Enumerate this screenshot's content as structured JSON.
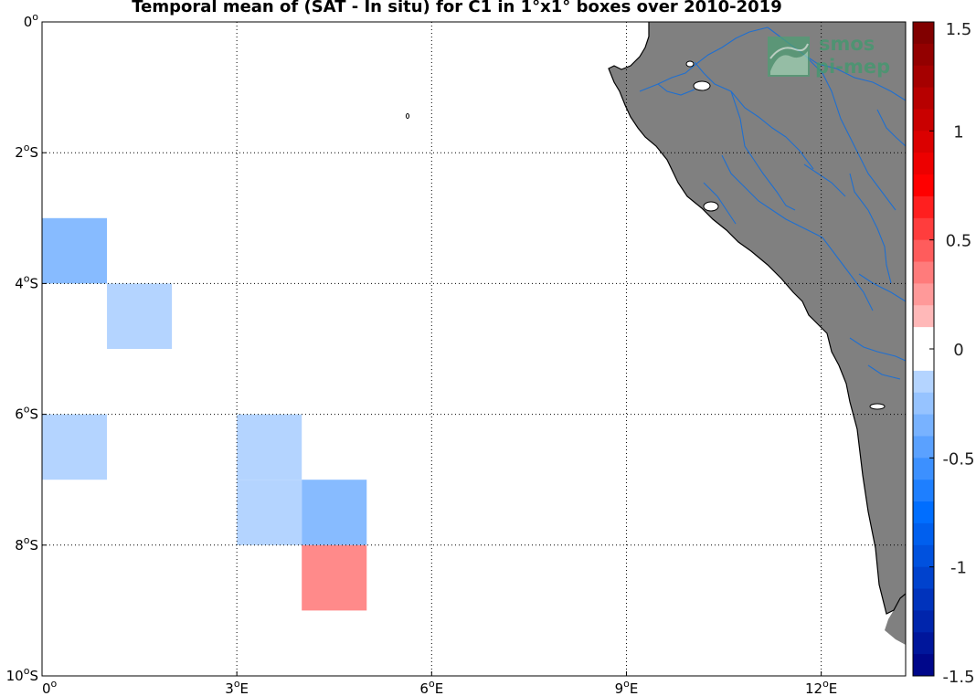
{
  "title": "Temporal mean of (SAT - In situ) for C1 in 1°x1° boxes over 2010-2019",
  "watermark": {
    "line1": "smos",
    "line2": "pi-mep"
  },
  "map": {
    "lon_range": [
      0,
      13.3
    ],
    "lat_range": [
      -10,
      0
    ],
    "grid": true,
    "x_ticks": [
      {
        "value": 0,
        "label": "0o"
      },
      {
        "value": 3,
        "label": "3oE"
      },
      {
        "value": 6,
        "label": "6oE"
      },
      {
        "value": 9,
        "label": "9oE"
      },
      {
        "value": 12,
        "label": "12oE"
      }
    ],
    "y_ticks": [
      {
        "value": 0,
        "label": "0o"
      },
      {
        "value": -2,
        "label": "2oS"
      },
      {
        "value": -4,
        "label": "4oS"
      },
      {
        "value": -6,
        "label": "6oS"
      },
      {
        "value": -8,
        "label": "8oS"
      },
      {
        "value": -10,
        "label": "10oS"
      }
    ],
    "land_color": "#808080",
    "river_color": "#1f6fd0"
  },
  "chart_data": {
    "type": "heatmap",
    "title": "Temporal mean of (SAT - In situ) for C1 in 1°x1° boxes over 2010-2019",
    "xlabel": "",
    "ylabel": "",
    "xlim": [
      0,
      13.3
    ],
    "ylim": [
      -10,
      0
    ],
    "cells": [
      {
        "lon": 0,
        "lat": -3,
        "value": -0.3
      },
      {
        "lon": 1,
        "lat": -4,
        "value": -0.15
      },
      {
        "lon": 0,
        "lat": -6,
        "value": -0.15
      },
      {
        "lon": 3,
        "lat": -6,
        "value": -0.15
      },
      {
        "lon": 3,
        "lat": -7,
        "value": -0.15
      },
      {
        "lon": 4,
        "lat": -7,
        "value": -0.3
      },
      {
        "lon": 4,
        "lat": -8,
        "value": 0.3
      }
    ],
    "colorbar": {
      "min": -1.5,
      "max": 1.5,
      "step": 0.1,
      "ticks": [
        {
          "value": 1.5,
          "label": "1.5"
        },
        {
          "value": 1,
          "label": "1"
        },
        {
          "value": 0.5,
          "label": "0.5"
        },
        {
          "value": 0,
          "label": "0"
        },
        {
          "value": -0.5,
          "label": "-0.5"
        },
        {
          "value": -1,
          "label": "-1"
        },
        {
          "value": -1.5,
          "label": "-1.5"
        }
      ]
    }
  }
}
